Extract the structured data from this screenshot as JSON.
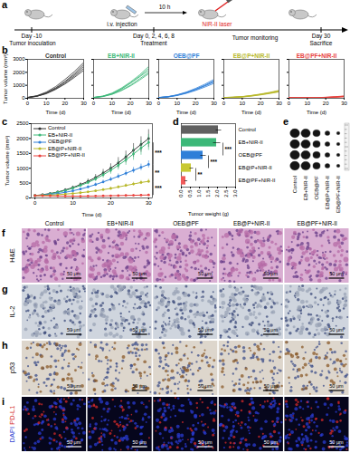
{
  "panel_labels": [
    "a",
    "b",
    "c",
    "d",
    "e",
    "f",
    "g",
    "h",
    "i"
  ],
  "schematic": {
    "start": {
      "day": "Day -10",
      "event": "Tumor inoculation"
    },
    "injection": "i.v. injection",
    "interval": "10 h",
    "laser": "NIR-II laser",
    "treatment": {
      "day": "Day 0, 2, 4, 6, 8",
      "event": "Treatment"
    },
    "monitoring": "Tumor monitoring",
    "end": {
      "day": "Day 30",
      "event": "Sacrifice"
    }
  },
  "chart_data": [
    {
      "type": "line",
      "title": "Control",
      "color": "#333333",
      "x": [
        0,
        5,
        10,
        15,
        20,
        25,
        30
      ],
      "series": [
        {
          "values": [
            60,
            180,
            420,
            800,
            1300,
            1900,
            2600
          ]
        },
        {
          "values": [
            70,
            200,
            480,
            900,
            1450,
            2050,
            2750
          ]
        },
        {
          "values": [
            50,
            150,
            380,
            720,
            1150,
            1700,
            2300
          ]
        },
        {
          "values": [
            65,
            170,
            400,
            760,
            1250,
            1800,
            2450
          ]
        },
        {
          "values": [
            55,
            160,
            350,
            680,
            1100,
            1600,
            2150
          ]
        }
      ],
      "xlim": [
        0,
        30
      ],
      "xticks": [
        0,
        10,
        20,
        30
      ],
      "ylim": [
        0,
        3000
      ],
      "yticks": [
        0,
        1000,
        2000,
        3000
      ],
      "xlabel": "Time (d)",
      "ylabel": "Tumor volume (mm³)",
      "tick_labels": true
    },
    {
      "type": "line",
      "title": "EB+NIR-II",
      "color": "#3cb878",
      "x": [
        0,
        5,
        10,
        15,
        20,
        25,
        30
      ],
      "series": [
        {
          "values": [
            60,
            150,
            350,
            700,
            1150,
            1700,
            2300
          ]
        },
        {
          "values": [
            65,
            170,
            400,
            780,
            1250,
            1800,
            2450
          ]
        },
        {
          "values": [
            55,
            140,
            320,
            620,
            1000,
            1500,
            2000
          ]
        },
        {
          "values": [
            50,
            130,
            300,
            580,
            950,
            1400,
            1900
          ]
        },
        {
          "values": [
            70,
            160,
            370,
            720,
            1180,
            1650,
            2150
          ]
        }
      ],
      "xlim": [
        0,
        30
      ],
      "xticks": [
        0,
        10,
        20,
        30
      ],
      "ylim": [
        0,
        3000
      ],
      "yticks": [
        0,
        1000,
        2000,
        3000
      ],
      "xlabel": "Time (d)",
      "tick_labels": "x"
    },
    {
      "type": "line",
      "title": "OEB@PF",
      "color": "#2f7fd8",
      "x": [
        0,
        5,
        10,
        15,
        20,
        25,
        30
      ],
      "series": [
        {
          "values": [
            60,
            120,
            250,
            450,
            700,
            1000,
            1350
          ]
        },
        {
          "values": [
            55,
            110,
            230,
            410,
            650,
            950,
            1250
          ]
        },
        {
          "values": [
            65,
            130,
            270,
            480,
            760,
            1080,
            1450
          ]
        },
        {
          "values": [
            50,
            100,
            210,
            380,
            600,
            860,
            1150
          ]
        },
        {
          "values": [
            60,
            115,
            240,
            430,
            680,
            960,
            1300
          ]
        }
      ],
      "xlim": [
        0,
        30
      ],
      "xticks": [
        0,
        10,
        20,
        30
      ],
      "ylim": [
        0,
        3000
      ],
      "yticks": [
        0,
        1000,
        2000,
        3000
      ],
      "xlabel": "Time (d)",
      "tick_labels": "x"
    },
    {
      "type": "line",
      "title": "EB@P+NIR-II",
      "color": "#b8b82a",
      "x": [
        0,
        5,
        10,
        15,
        20,
        25,
        30
      ],
      "series": [
        {
          "values": [
            60,
            80,
            120,
            200,
            300,
            420,
            560
          ]
        },
        {
          "values": [
            55,
            75,
            110,
            180,
            280,
            390,
            520
          ]
        },
        {
          "values": [
            65,
            90,
            135,
            220,
            330,
            460,
            610
          ]
        },
        {
          "values": [
            50,
            70,
            100,
            170,
            260,
            370,
            490
          ]
        },
        {
          "values": [
            60,
            85,
            125,
            210,
            310,
            430,
            580
          ]
        }
      ],
      "xlim": [
        0,
        30
      ],
      "xticks": [
        0,
        10,
        20,
        30
      ],
      "ylim": [
        0,
        3000
      ],
      "yticks": [
        0,
        1000,
        2000,
        3000
      ],
      "xlabel": "Time (d)",
      "tick_labels": "x"
    },
    {
      "type": "line",
      "title": "EB@PF+NIR-II",
      "color": "#e8413c",
      "x": [
        0,
        5,
        10,
        15,
        20,
        25,
        30
      ],
      "series": [
        {
          "values": [
            60,
            50,
            45,
            50,
            70,
            100,
            150
          ]
        },
        {
          "values": [
            55,
            45,
            40,
            45,
            60,
            90,
            130
          ]
        },
        {
          "values": [
            65,
            55,
            50,
            55,
            80,
            120,
            180
          ]
        },
        {
          "values": [
            50,
            40,
            35,
            40,
            55,
            80,
            120
          ]
        },
        {
          "values": [
            60,
            50,
            45,
            55,
            75,
            110,
            160
          ]
        }
      ],
      "xlim": [
        0,
        30
      ],
      "xticks": [
        0,
        10,
        20,
        30
      ],
      "ylim": [
        0,
        3000
      ],
      "yticks": [
        0,
        1000,
        2000,
        3000
      ],
      "xlabel": "Time (d)",
      "tick_labels": "x"
    },
    {
      "type": "line",
      "x": [
        0,
        2,
        4,
        6,
        8,
        10,
        12,
        14,
        16,
        18,
        20,
        22,
        24,
        26,
        28,
        30
      ],
      "series": [
        {
          "name": "Control",
          "color": "#333333",
          "values": [
            80,
            110,
            150,
            200,
            270,
            350,
            450,
            560,
            690,
            840,
            1000,
            1180,
            1380,
            1600,
            1800,
            2000
          ],
          "errors": [
            10,
            15,
            20,
            30,
            40,
            50,
            60,
            80,
            100,
            120,
            150,
            180,
            200,
            230,
            260,
            300
          ]
        },
        {
          "name": "EB+NIR-II",
          "color": "#3cb878",
          "values": [
            80,
            100,
            140,
            190,
            250,
            330,
            420,
            520,
            640,
            780,
            930,
            1100,
            1280,
            1480,
            1680,
            1870
          ],
          "errors": [
            10,
            14,
            18,
            25,
            35,
            45,
            55,
            70,
            90,
            110,
            130,
            160,
            180,
            210,
            240,
            270
          ]
        },
        {
          "name": "OEB@PF",
          "color": "#2f7fd8",
          "values": [
            80,
            95,
            120,
            150,
            190,
            240,
            300,
            370,
            450,
            540,
            630,
            730,
            830,
            930,
            1030,
            1130
          ],
          "errors": [
            10,
            12,
            15,
            20,
            25,
            30,
            35,
            45,
            55,
            60,
            70,
            80,
            90,
            100,
            110,
            120
          ]
        },
        {
          "name": "EB@P+NIR-II",
          "color": "#b8b82a",
          "values": [
            80,
            85,
            95,
            110,
            130,
            150,
            175,
            205,
            240,
            280,
            320,
            370,
            420,
            470,
            520,
            560
          ],
          "errors": [
            10,
            10,
            12,
            15,
            18,
            20,
            25,
            30,
            35,
            40,
            45,
            50,
            55,
            60,
            65,
            70
          ]
        },
        {
          "name": "EB@PF+NIR-II",
          "color": "#e8413c",
          "values": [
            80,
            75,
            70,
            65,
            62,
            60,
            60,
            62,
            65,
            70,
            75,
            80,
            85,
            90,
            95,
            100
          ],
          "errors": [
            10,
            10,
            10,
            10,
            10,
            10,
            10,
            12,
            12,
            14,
            15,
            16,
            18,
            20,
            22,
            25
          ]
        }
      ],
      "xlim": [
        -1,
        31
      ],
      "xticks": [
        0,
        10,
        20,
        30
      ],
      "ylim": [
        0,
        2500
      ],
      "yticks": [
        0,
        500,
        1000,
        1500,
        2000,
        2500
      ],
      "xlabel": "Time (d)",
      "ylabel": "Tumor volume (mm³)",
      "marker": "circle",
      "legend": "top-left",
      "annotations": [
        {
          "text": "***",
          "between": [
            "EB+NIR-II",
            "OEB@PF"
          ]
        },
        {
          "text": "**",
          "between": [
            "OEB@PF",
            "EB@P+NIR-II"
          ]
        },
        {
          "text": "***",
          "between": [
            "EB@P+NIR-II",
            "EB@PF+NIR-II"
          ]
        }
      ]
    },
    {
      "type": "bar",
      "orientation": "horizontal",
      "categories": [
        "Control",
        "EB+NIR-II",
        "OEB@PF",
        "EB@P+NIR-II",
        "EB@PF+NIR-II"
      ],
      "values": [
        2.05,
        1.95,
        1.2,
        0.55,
        0.25
      ],
      "errors": [
        0.15,
        0.2,
        0.15,
        0.1,
        0.08
      ],
      "colors": [
        "#606060",
        "#3cb878",
        "#2f7fd8",
        "#c8c832",
        "#f05a5a"
      ],
      "xlim": [
        0,
        3
      ],
      "xticks": [
        {
          "value": 0,
          "label": "0.0"
        },
        {
          "value": 0.5,
          "label": "0.5"
        },
        {
          "value": 1,
          "label": "1.0"
        },
        {
          "value": 1.5,
          "label": "1.5"
        },
        {
          "value": 2,
          "label": "2.0"
        },
        {
          "value": 2.5,
          "label": "2.5"
        },
        {
          "value": 3,
          "label": "3.0"
        }
      ],
      "xlabel": "Tumor weight (g)",
      "annotations": [
        {
          "text": "***",
          "between": [
            "EB+NIR-II",
            "OEB@PF"
          ]
        },
        {
          "text": "***",
          "between": [
            "OEB@PF",
            "EB@P+NIR-II"
          ]
        },
        {
          "text": "**",
          "between": [
            "EB@P+NIR-II",
            "EB@PF+NIR-II"
          ]
        }
      ]
    }
  ],
  "tumor_photo": {
    "groups": [
      "Control",
      "EB+NIR-II",
      "OEB@PF",
      "EB@P+NIR-II",
      "EB@PF+NIR-II"
    ],
    "tumors_per_group": 4
  },
  "histology": {
    "groups": [
      "Control",
      "EB+NIR-II",
      "OEB@PF",
      "EB@P+NIR-II",
      "EB@PF+NIR-II"
    ],
    "rows": [
      {
        "label": [
          "H&E"
        ]
      },
      {
        "label": [
          "IL-2"
        ]
      },
      {
        "label": [
          "p53"
        ]
      },
      {
        "label": [
          "DAPI",
          "PD-L1"
        ]
      }
    ],
    "scale_bar": "50 μm"
  }
}
